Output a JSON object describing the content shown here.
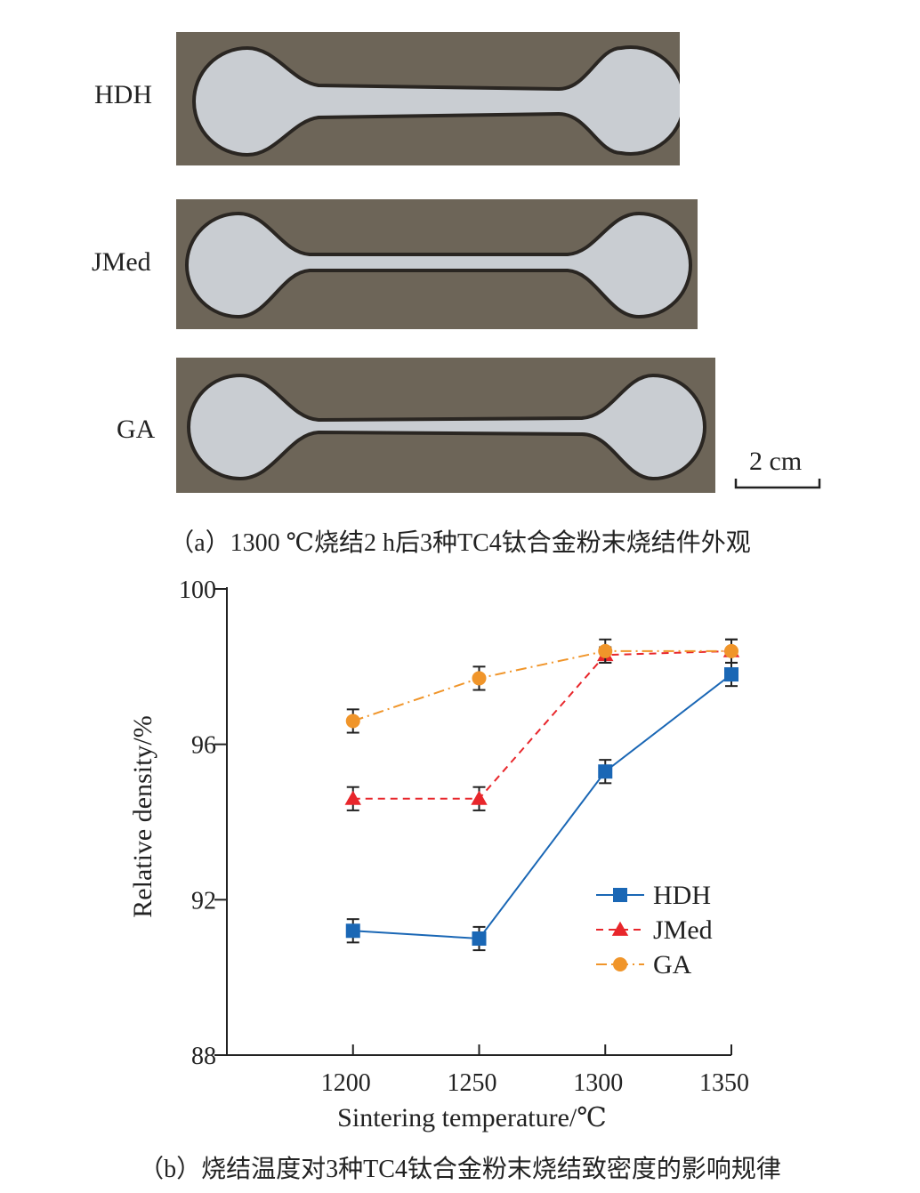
{
  "panel_a": {
    "specimens": [
      {
        "label": "HDH"
      },
      {
        "label": "JMed"
      },
      {
        "label": "GA"
      }
    ],
    "scale_bar_label": "2 cm",
    "caption": "（a）1300 ℃烧结2 h后3种TC4钛合金粉末烧结件外观"
  },
  "panel_b": {
    "caption": "（b）烧结温度对3种TC4钛合金粉末烧结致密度的影响规律"
  },
  "colors": {
    "HDH": "#1a67b5",
    "JMed": "#e8262b",
    "GA": "#f0952a",
    "axis": "#222222",
    "specimen_metal": "#c9cdd2",
    "mold": "#6d6558"
  },
  "chart_data": {
    "type": "line",
    "xlabel": "Sintering temperature/℃",
    "ylabel": "Relative density/%",
    "xlim": [
      1150,
      1350
    ],
    "ylim": [
      88,
      100
    ],
    "x_ticks": [
      1200,
      1250,
      1300,
      1350
    ],
    "y_ticks": [
      88,
      92,
      96,
      100
    ],
    "legend_position": "right-center",
    "series": [
      {
        "name": "HDH",
        "marker": "square",
        "line": "solid",
        "x": [
          1200,
          1250,
          1300,
          1350
        ],
        "y": [
          91.2,
          91.0,
          95.3,
          97.8
        ],
        "err": [
          0.3,
          0.3,
          0.3,
          0.3
        ]
      },
      {
        "name": "JMed",
        "marker": "triangle",
        "line": "dashed",
        "x": [
          1200,
          1250,
          1300,
          1350
        ],
        "y": [
          94.6,
          94.6,
          98.3,
          98.4
        ],
        "err": [
          0.3,
          0.3,
          0.2,
          0.3
        ]
      },
      {
        "name": "GA",
        "marker": "circle",
        "line": "dashdot",
        "x": [
          1200,
          1250,
          1300,
          1350
        ],
        "y": [
          96.6,
          97.7,
          98.4,
          98.4
        ],
        "err": [
          0.3,
          0.3,
          0.3,
          0.3
        ]
      }
    ]
  }
}
